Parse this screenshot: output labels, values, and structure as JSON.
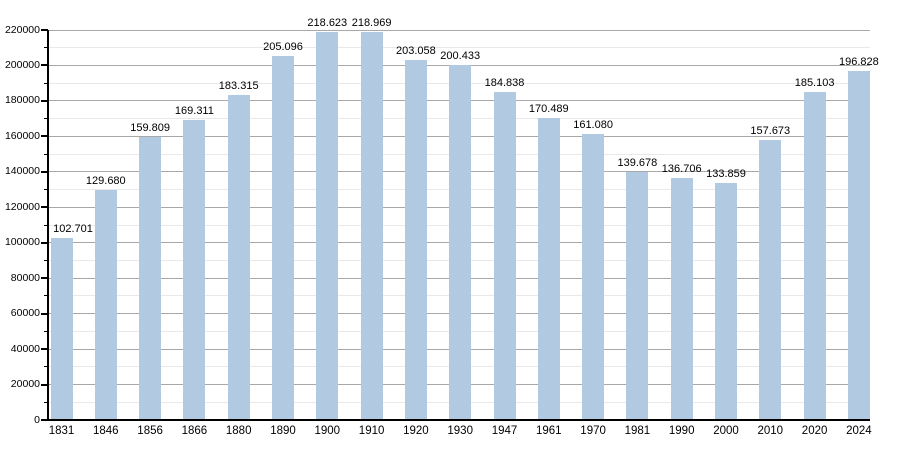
{
  "chart_data": {
    "type": "bar",
    "title": "",
    "xlabel": "",
    "ylabel": "",
    "categories": [
      "1831",
      "1846",
      "1856",
      "1866",
      "1880",
      "1890",
      "1900",
      "1910",
      "1920",
      "1930",
      "1947",
      "1961",
      "1970",
      "1981",
      "1990",
      "2000",
      "2010",
      "2020",
      "2024"
    ],
    "values": [
      102701,
      129680,
      159809,
      169311,
      183315,
      205096,
      218623,
      218969,
      203058,
      200433,
      184838,
      170489,
      161080,
      139678,
      136706,
      133859,
      157673,
      185103,
      196828
    ],
    "value_labels": [
      "102.701",
      "129.680",
      "159.809",
      "169.311",
      "183.315",
      "205.096",
      "218.623",
      "218.969",
      "203.058",
      "200.433",
      "184.838",
      "170.489",
      "161.080",
      "139.678",
      "136.706",
      "133.859",
      "157.673",
      "185.103",
      "196.828"
    ],
    "ylim": [
      0,
      220000
    ],
    "y_major_step": 20000,
    "y_minor_step": 10000,
    "y_tick_labels": [
      "0",
      "20000",
      "40000",
      "60000",
      "80000",
      "100000",
      "120000",
      "140000",
      "160000",
      "180000",
      "200000",
      "220000"
    ],
    "grid": "horizontal major and minor lines, on",
    "legend": "none",
    "bar_color": "#b2c9e2",
    "major_grid_color": "#a8a8a8",
    "minor_grid_color": "#e9e9e9",
    "axis_color": "#000000",
    "text_color": "#000000",
    "background_color": "#ffffff"
  }
}
